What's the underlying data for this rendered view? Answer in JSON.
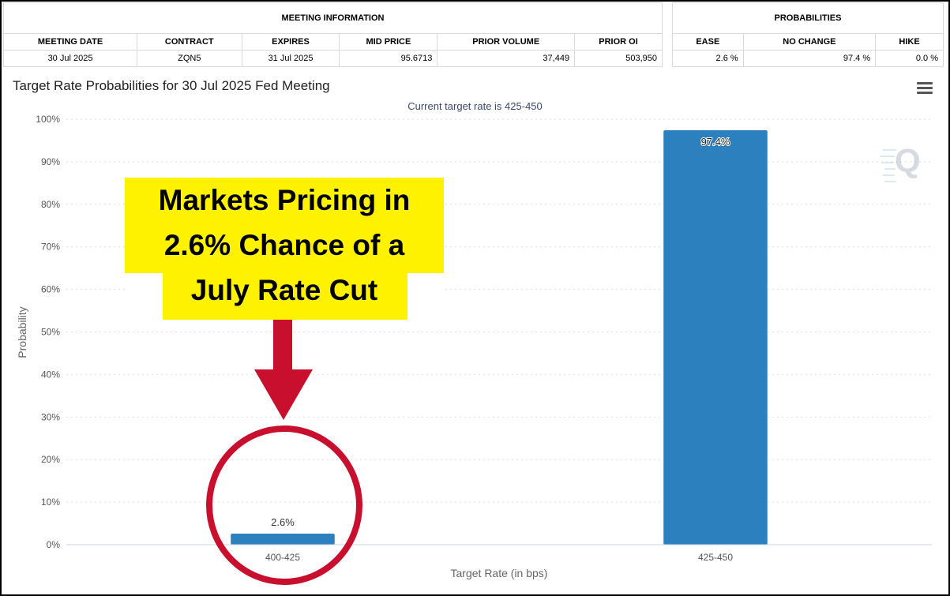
{
  "meeting_info": {
    "header": "MEETING INFORMATION",
    "columns": [
      "MEETING DATE",
      "CONTRACT",
      "EXPIRES",
      "MID PRICE",
      "PRIOR VOLUME",
      "PRIOR OI"
    ],
    "row": [
      "30 Jul 2025",
      "ZQN5",
      "31 Jul 2025",
      "95.6713",
      "37,449",
      "503,950"
    ]
  },
  "probabilities": {
    "header": "PROBABILITIES",
    "columns": [
      "EASE",
      "NO CHANGE",
      "HIKE"
    ],
    "row": [
      "2.6 %",
      "97.4 %",
      "0.0 %"
    ]
  },
  "chart_data": {
    "type": "bar",
    "title": "Target Rate Probabilities for 30 Jul 2025 Fed Meeting",
    "subtitle": "Current target rate is 425-450",
    "xlabel": "Target Rate (in bps)",
    "ylabel": "Probability",
    "categories": [
      "400-425",
      "425-450"
    ],
    "values": [
      2.6,
      97.4
    ],
    "data_labels": [
      "2.6%",
      "97.4%"
    ],
    "ylim": [
      0,
      100
    ],
    "yticks": [
      0,
      10,
      20,
      30,
      40,
      50,
      60,
      70,
      80,
      90,
      100
    ],
    "ytick_labels": [
      "0%",
      "10%",
      "20%",
      "30%",
      "40%",
      "50%",
      "60%",
      "70%",
      "80%",
      "90%",
      "100%"
    ],
    "grid": true,
    "bar_color": "#2b80bd"
  },
  "annotation": {
    "text": "Markets Pricing in\n2.6% Chance of a\nJuly Rate Cut",
    "highlight_color": "#fff200",
    "arrow_color": "#c8102e"
  },
  "watermark": {
    "text": "Q"
  }
}
